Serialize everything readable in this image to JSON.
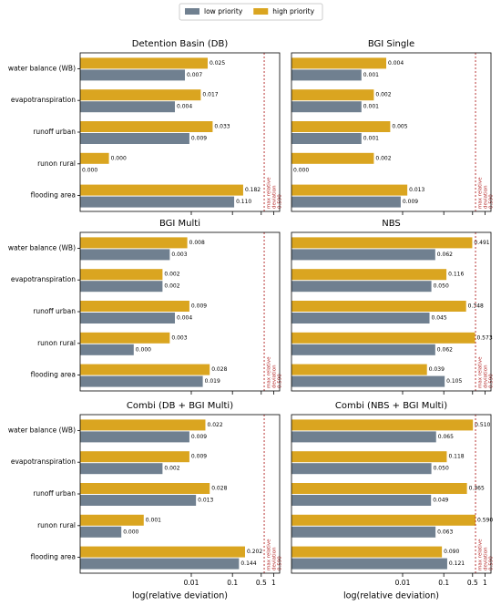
{
  "chart_data": [
    {
      "type": "bar",
      "orientation": "horizontal",
      "title": "Detention Basin (DB)",
      "legend": "upper center",
      "categories": [
        "water balance (WB)",
        "evapotranspiration",
        "runoff urban",
        "runon rural",
        "flooding area"
      ],
      "series": [
        {
          "name": "low priority",
          "color": "#708090",
          "values": [
            0.007,
            0.004,
            0.009,
            2e-05,
            0.11
          ],
          "value_labels": [
            "0.007",
            "0.004",
            "0.009",
            "0.000",
            "0.110"
          ]
        },
        {
          "name": "high priority",
          "color": "#daa520",
          "values": [
            0.025,
            0.017,
            0.033,
            0.0001,
            0.182
          ],
          "value_labels": [
            "0.025",
            "0.017",
            "0.033",
            "0.000",
            "0.182"
          ]
        }
      ],
      "xscale": "log",
      "xlim": [
        2e-05,
        1.4
      ],
      "xticks": [
        0.01,
        0.1,
        0.5,
        1
      ],
      "threshold": {
        "value": 0.59,
        "label": "0.590"
      },
      "threshold_text": [
        "max relative",
        "deviation"
      ]
    },
    {
      "type": "bar",
      "orientation": "horizontal",
      "title": "BGI Single",
      "series": [
        {
          "name": "low priority",
          "color": "#708090",
          "values": [
            0.001,
            0.001,
            0.001,
            2e-05,
            0.009
          ],
          "value_labels": [
            "0.001",
            "0.001",
            "0.001",
            "0.000",
            "0.009"
          ]
        },
        {
          "name": "high priority",
          "color": "#daa520",
          "values": [
            0.004,
            0.002,
            0.005,
            0.002,
            0.013
          ],
          "value_labels": [
            "0.004",
            "0.002",
            "0.005",
            "0.002",
            "0.013"
          ]
        }
      ],
      "xscale": "log",
      "xlim": [
        2e-05,
        1.4
      ],
      "xticks": [
        0.01,
        0.1,
        0.5,
        1
      ],
      "threshold": {
        "value": 0.59,
        "label": "0.590"
      },
      "threshold_text": [
        "max relative",
        "deviation"
      ]
    },
    {
      "type": "bar",
      "orientation": "horizontal",
      "title": "BGI Multi",
      "categories": [
        "water balance (WB)",
        "evapotranspiration",
        "runoff urban",
        "runon rural",
        "flooding area"
      ],
      "series": [
        {
          "name": "low priority",
          "color": "#708090",
          "values": [
            0.003,
            0.002,
            0.004,
            0.0004,
            0.019
          ],
          "value_labels": [
            "0.003",
            "0.002",
            "0.004",
            "0.000",
            "0.019"
          ]
        },
        {
          "name": "high priority",
          "color": "#daa520",
          "values": [
            0.008,
            0.002,
            0.009,
            0.003,
            0.028
          ],
          "value_labels": [
            "0.008",
            "0.002",
            "0.009",
            "0.003",
            "0.028"
          ]
        }
      ],
      "xscale": "log",
      "xlim": [
        2e-05,
        1.4
      ],
      "xticks": [
        0.01,
        0.1,
        0.5,
        1
      ],
      "threshold": {
        "value": 0.59,
        "label": "0.590"
      },
      "threshold_text": [
        "max relative",
        "deviation"
      ]
    },
    {
      "type": "bar",
      "orientation": "horizontal",
      "title": "NBS",
      "series": [
        {
          "name": "low priority",
          "color": "#708090",
          "values": [
            0.062,
            0.05,
            0.045,
            0.062,
            0.105
          ],
          "value_labels": [
            "0.062",
            "0.050",
            "0.045",
            "0.062",
            "0.105"
          ]
        },
        {
          "name": "high priority",
          "color": "#daa520",
          "values": [
            0.491,
            0.116,
            0.348,
            0.573,
            0.039
          ],
          "value_labels": [
            "0.491",
            "0.116",
            "0.348",
            "0.573",
            "0.039"
          ]
        }
      ],
      "xscale": "log",
      "xlim": [
        2e-05,
        1.4
      ],
      "xticks": [
        0.01,
        0.1,
        0.5,
        1
      ],
      "threshold": {
        "value": 0.59,
        "label": "0.590"
      },
      "threshold_text": [
        "max relative",
        "deviation"
      ]
    },
    {
      "type": "bar",
      "orientation": "horizontal",
      "title": "Combi (DB + BGI Multi)",
      "categories": [
        "water balance (WB)",
        "evapotranspiration",
        "runoff urban",
        "runon rural",
        "flooding area"
      ],
      "series": [
        {
          "name": "low priority",
          "color": "#708090",
          "values": [
            0.009,
            0.002,
            0.013,
            0.0002,
            0.144
          ],
          "value_labels": [
            "0.009",
            "0.002",
            "0.013",
            "0.000",
            "0.144"
          ]
        },
        {
          "name": "high priority",
          "color": "#daa520",
          "values": [
            0.022,
            0.009,
            0.028,
            0.0007,
            0.202
          ],
          "value_labels": [
            "0.022",
            "0.009",
            "0.028",
            "0.001",
            "0.202"
          ]
        }
      ],
      "xscale": "log",
      "xlim": [
        2e-05,
        1.4
      ],
      "xticks": [
        0.01,
        0.1,
        0.5,
        1
      ],
      "xlabel": "log(relative deviation)",
      "threshold": {
        "value": 0.59,
        "label": "0.590"
      },
      "threshold_text": [
        "max relative",
        "deviation"
      ]
    },
    {
      "type": "bar",
      "orientation": "horizontal",
      "title": "Combi (NBS + BGI Multi)",
      "series": [
        {
          "name": "low priority",
          "color": "#708090",
          "values": [
            0.065,
            0.05,
            0.049,
            0.063,
            0.121
          ],
          "value_labels": [
            "0.065",
            "0.050",
            "0.049",
            "0.063",
            "0.121"
          ]
        },
        {
          "name": "high priority",
          "color": "#daa520",
          "values": [
            0.51,
            0.118,
            0.365,
            0.59,
            0.09
          ],
          "value_labels": [
            "0.510",
            "0.118",
            "0.365",
            "0.590",
            "0.090"
          ]
        }
      ],
      "xscale": "log",
      "xlim": [
        2e-05,
        1.4
      ],
      "xticks": [
        0.01,
        0.1,
        0.5,
        1
      ],
      "xlabel": "log(relative deviation)",
      "threshold": {
        "value": 0.59,
        "label": "0.590"
      },
      "threshold_text": [
        "max relative",
        "deviation"
      ]
    }
  ]
}
